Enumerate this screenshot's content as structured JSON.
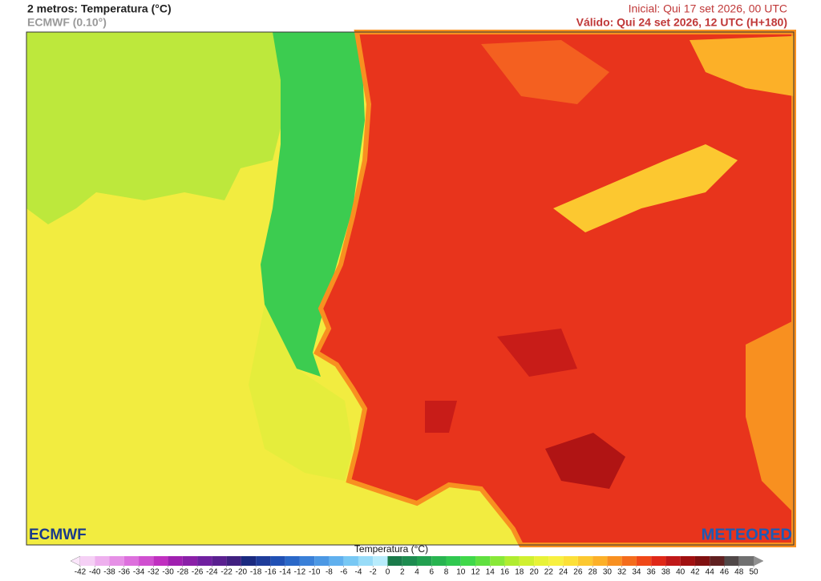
{
  "header": {
    "title": "2 metros: Temperatura (°C)",
    "model": "ECMWF (0.10°)",
    "initial": "Inicial: Qui 17 set 2026, 00 UTC",
    "valid": "Válido: Qui 24 set 2026, 12 UTC (H+180)"
  },
  "logos": {
    "left": "ECMWF",
    "right": "METEORED"
  },
  "colorbar": {
    "title": "Temperatura (°C)",
    "ticks": [
      -42,
      -40,
      -38,
      -36,
      -34,
      -32,
      -30,
      -28,
      -26,
      -24,
      -22,
      -20,
      -18,
      -16,
      -14,
      -12,
      -10,
      -8,
      -6,
      -4,
      -2,
      0,
      2,
      4,
      6,
      8,
      10,
      12,
      14,
      16,
      18,
      20,
      22,
      24,
      26,
      28,
      30,
      32,
      34,
      36,
      38,
      40,
      42,
      44,
      46,
      48,
      50
    ],
    "colors": [
      "#f5d0f5",
      "#eeb0ee",
      "#e690e6",
      "#dd70dd",
      "#d050d0",
      "#c030c0",
      "#a020b0",
      "#8a20a8",
      "#7020a0",
      "#5a2090",
      "#402080",
      "#1a2a80",
      "#1e3c9a",
      "#2050b4",
      "#2a68c8",
      "#3a80d8",
      "#4c98e4",
      "#60b0ee",
      "#78c8f4",
      "#98dcf8",
      "#b8ecfc",
      "#1a7a4a",
      "#1e8c50",
      "#22a050",
      "#28b450",
      "#30c850",
      "#40d84a",
      "#60e040",
      "#88e838",
      "#b0ec30",
      "#d0f030",
      "#e8f238",
      "#f8f040",
      "#fce038",
      "#fcc830",
      "#fcb028",
      "#f89020",
      "#f46c1c",
      "#f04818",
      "#e02818",
      "#c01818",
      "#a01010",
      "#801010",
      "#602020",
      "#504848",
      "#707070"
    ]
  }
}
